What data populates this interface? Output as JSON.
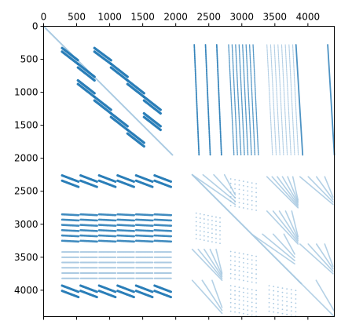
{
  "chart_data": {
    "type": "scatter",
    "subtype": "sparsity pattern (spy plot)",
    "title": "",
    "xlabel": "",
    "ylabel": "",
    "x_axis_position": "top",
    "y_inverted": true,
    "xlim": [
      0,
      4400
    ],
    "ylim": [
      4400,
      0
    ],
    "grid": false,
    "legend": "none",
    "x_ticks": [
      0,
      500,
      1000,
      1500,
      2000,
      2500,
      3000,
      3500,
      4000
    ],
    "x_tick_labels": [
      "0",
      "500",
      "1000",
      "1500",
      "2000",
      "2500",
      "3000",
      "3500",
      "4000"
    ],
    "y_ticks": [
      0,
      500,
      1000,
      1500,
      2000,
      2500,
      3000,
      3500,
      4000
    ],
    "y_tick_labels": [
      "0",
      "500",
      "1000",
      "1500",
      "2000",
      "2500",
      "3000",
      "3500",
      "4000"
    ],
    "colors": {
      "dense": "#1f77b4",
      "main_diagonal": "#a6c8e0",
      "faint": "#8fb8d8"
    },
    "series": [
      {
        "kind": "diagonal_line",
        "color_key": "main_diagonal",
        "segments": [
          {
            "x0": 0,
            "y0": 0,
            "x1": 1950,
            "y1": 1950
          },
          {
            "x0": 2250,
            "y0": 2250,
            "x1": 3900,
            "y1": 3900
          }
        ]
      },
      {
        "kind": "band_grid",
        "color_key": "dense",
        "opacity": 0.95,
        "stroke": 3.2,
        "x_blocks": [
          [
            280,
            520
          ],
          [
            520,
            770
          ],
          [
            770,
            1020
          ],
          [
            1020,
            1270
          ],
          [
            1270,
            1520
          ],
          [
            1520,
            1770
          ]
        ],
        "y_blocks": [
          [
            330,
            570
          ],
          [
            570,
            820
          ],
          [
            820,
            1070
          ],
          [
            1070,
            1320
          ],
          [
            1320,
            1570
          ],
          [
            1570,
            1820
          ]
        ],
        "active": [
          [
            0,
            0
          ],
          [
            1,
            1
          ],
          [
            0,
            2
          ],
          [
            2,
            1
          ],
          [
            1,
            3
          ],
          [
            3,
            2
          ],
          [
            2,
            4
          ],
          [
            4,
            3
          ],
          [
            3,
            5
          ],
          [
            5,
            4
          ],
          [
            4,
            5
          ]
        ],
        "direction": "down",
        "lines_per_block": 2
      },
      {
        "kind": "skew_stripes",
        "color_key": "dense",
        "opacity": 0.9,
        "stroke": 1.8,
        "x_range": [
          2280,
          2700
        ],
        "y_range": [
          280,
          1950
        ],
        "count": 3,
        "dx": 400,
        "dy": 1650,
        "dashed": true
      },
      {
        "kind": "skew_stripes",
        "color_key": "dense",
        "opacity": 0.75,
        "stroke": 1.4,
        "x_range": [
          2800,
          3250
        ],
        "y_range": [
          280,
          1950
        ],
        "count": 8,
        "dx": 450,
        "dy": 200,
        "dashed": true
      },
      {
        "kind": "skew_stripes",
        "color_key": "faint",
        "opacity": 0.7,
        "stroke": 1.2,
        "x_range": [
          3380,
          3850
        ],
        "y_range": [
          280,
          1950
        ],
        "count": 8,
        "dx": 470,
        "dy": 0,
        "dashed": true
      },
      {
        "kind": "skew_stripes",
        "color_key": "dense",
        "opacity": 0.8,
        "stroke": 1.8,
        "x_range": [
          3820,
          4380
        ],
        "y_range": [
          280,
          1950
        ],
        "count": 2,
        "dx": 560,
        "dy": 1650,
        "dashed": false
      },
      {
        "kind": "hband_stripes",
        "color_key": "dense",
        "opacity": 0.95,
        "stroke": 3,
        "x_range": [
          280,
          1950
        ],
        "y_rows": [
          2260,
          2340,
          3930,
          4010
        ],
        "dy_slope": 380
      },
      {
        "kind": "hband_stripes",
        "color_key": "dense",
        "opacity": 0.85,
        "stroke": 2.6,
        "x_range": [
          280,
          1950
        ],
        "y_rows": [
          2850,
          2930,
          3010,
          3090,
          3170,
          3250
        ],
        "dy_slope": 50
      },
      {
        "kind": "hband_stripes",
        "color_key": "faint",
        "opacity": 0.75,
        "stroke": 2,
        "x_range": [
          280,
          1950
        ],
        "y_rows": [
          3420,
          3500,
          3580,
          3660,
          3740,
          3820
        ],
        "dy_slope": 0
      },
      {
        "kind": "fan_lines",
        "color_key": "main_diagonal",
        "opacity": 0.85,
        "stroke": 1.6,
        "blocks": [
          {
            "x0": 2250,
            "y0": 2250,
            "x1": 2900,
            "y1": 2700,
            "count": 4
          },
          {
            "x0": 3150,
            "y0": 3150,
            "x1": 3800,
            "y1": 3600,
            "count": 4
          },
          {
            "x0": 3850,
            "y0": 3850,
            "x1": 4400,
            "y1": 4400,
            "count": 2
          },
          {
            "x0": 3380,
            "y0": 2280,
            "x1": 3850,
            "y1": 2750,
            "count": 6
          },
          {
            "x0": 3380,
            "y0": 2800,
            "x1": 3850,
            "y1": 3300,
            "count": 5
          },
          {
            "x0": 2250,
            "y0": 3380,
            "x1": 2700,
            "y1": 3850,
            "count": 5
          },
          {
            "x0": 2250,
            "y0": 3850,
            "x1": 2700,
            "y1": 4350,
            "count": 3
          },
          {
            "x0": 3880,
            "y0": 2280,
            "x1": 4380,
            "y1": 2700,
            "count": 4
          },
          {
            "x0": 3880,
            "y0": 3300,
            "x1": 4380,
            "y1": 3750,
            "count": 4
          }
        ]
      },
      {
        "kind": "dot_blocks",
        "color_key": "faint",
        "opacity": 0.75,
        "blocks": [
          {
            "x0": 2800,
            "y0": 2280,
            "x1": 3250,
            "y1": 2750
          },
          {
            "x0": 2280,
            "y0": 2800,
            "x1": 2700,
            "y1": 3250
          },
          {
            "x0": 2800,
            "y0": 3380,
            "x1": 3250,
            "y1": 3850
          },
          {
            "x0": 2800,
            "y0": 3900,
            "x1": 3250,
            "y1": 4350
          },
          {
            "x0": 3380,
            "y0": 3900,
            "x1": 3850,
            "y1": 4350
          }
        ]
      }
    ]
  }
}
